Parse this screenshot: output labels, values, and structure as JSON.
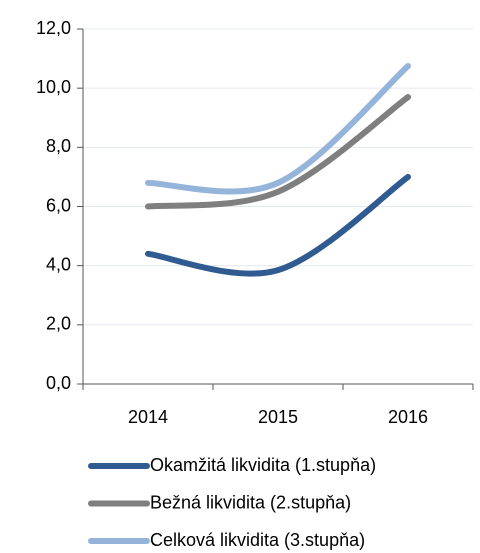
{
  "chart_data": {
    "type": "line",
    "categories": [
      "2014",
      "2015",
      "2016"
    ],
    "series": [
      {
        "name": "Okamžitá likvidita (1.stupňa)",
        "color": "#2f5b91",
        "values": [
          4.4,
          3.85,
          7.0
        ]
      },
      {
        "name": "Bežná likvidita (2.stupňa)",
        "color": "#7f7f7f",
        "values": [
          6.0,
          6.5,
          9.7
        ]
      },
      {
        "name": "Celková likvidita (3.stupňa)",
        "color": "#95b4da",
        "values": [
          6.8,
          6.8,
          10.75
        ]
      }
    ],
    "ylim": [
      0,
      12
    ],
    "yticks": [
      {
        "value": 0,
        "label": "0,0"
      },
      {
        "value": 2,
        "label": "2,0"
      },
      {
        "value": 4,
        "label": "4,0"
      },
      {
        "value": 6,
        "label": "6,0"
      },
      {
        "value": 8,
        "label": "8,0"
      },
      {
        "value": 10,
        "label": "10,0"
      },
      {
        "value": 12,
        "label": "12,0"
      }
    ],
    "grid": true,
    "legend": "bottom",
    "smooth": true
  }
}
